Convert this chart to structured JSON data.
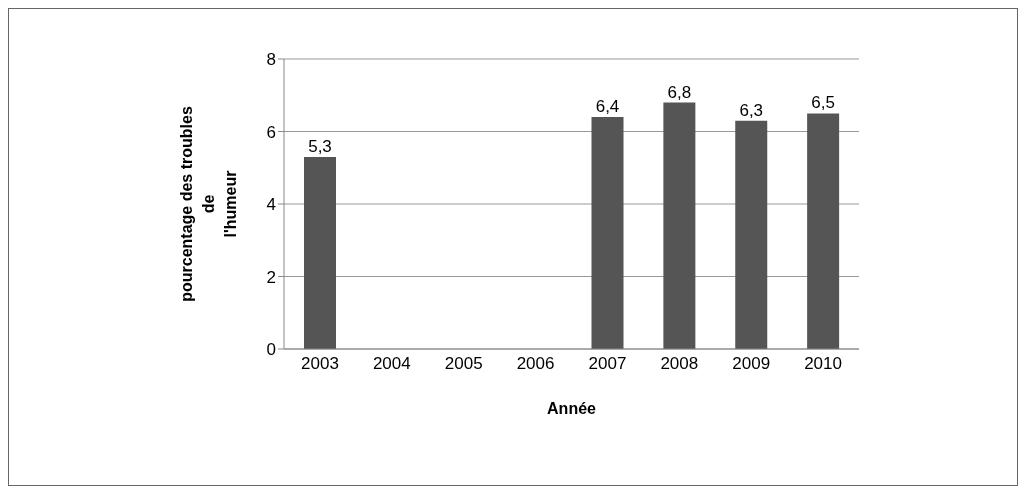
{
  "chart_data": {
    "type": "bar",
    "xlabel": "Année",
    "ylabel": "pourcentage des troubles\nde\nl'humeur",
    "categories": [
      "2003",
      "2004",
      "2005",
      "2006",
      "2007",
      "2008",
      "2009",
      "2010"
    ],
    "values": [
      5.3,
      null,
      null,
      null,
      6.4,
      6.8,
      6.3,
      6.5
    ],
    "value_labels": [
      "5,3",
      null,
      null,
      null,
      "6,4",
      "6,8",
      "6,3",
      "6,5"
    ],
    "color": "#555555",
    "ylim": [
      0,
      8
    ],
    "yticks": [
      0,
      2,
      4,
      6,
      8
    ],
    "grid": "y"
  }
}
